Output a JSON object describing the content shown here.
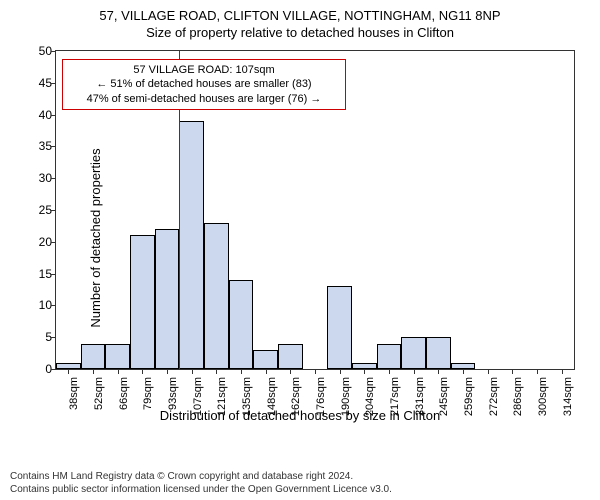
{
  "title_line1": "57, VILLAGE ROAD, CLIFTON VILLAGE, NOTTINGHAM, NG11 8NP",
  "title_line2": "Size of property relative to detached houses in Clifton",
  "ylabel": "Number of detached properties",
  "xlabel": "Distribution of detached houses by size in Clifton",
  "chart": {
    "type": "histogram",
    "ymin": 0,
    "ymax": 50,
    "ytick_step": 5,
    "yticks": [
      0,
      5,
      10,
      15,
      20,
      25,
      30,
      35,
      40,
      45,
      50
    ],
    "xtick_labels": [
      "38sqm",
      "52sqm",
      "66sqm",
      "79sqm",
      "93sqm",
      "107sqm",
      "121sqm",
      "135sqm",
      "148sqm",
      "162sqm",
      "176sqm",
      "190sqm",
      "204sqm",
      "217sqm",
      "231sqm",
      "245sqm",
      "259sqm",
      "272sqm",
      "286sqm",
      "300sqm",
      "314sqm"
    ],
    "bar_values": [
      1,
      4,
      4,
      21,
      22,
      39,
      23,
      14,
      3,
      4,
      0,
      13,
      1,
      4,
      5,
      5,
      1,
      0,
      0,
      0,
      0
    ],
    "bar_fill": "#cbd8ee",
    "bar_border": "#000000",
    "refline_x_index": 5,
    "refline_color": "#cc0000",
    "background": "#ffffff",
    "axis_color": "#333333"
  },
  "annotation": {
    "line1": "57 VILLAGE ROAD: 107sqm",
    "line2": "← 51% of detached houses are smaller (83)",
    "line3": "47% of semi-detached houses are larger (76) →",
    "border_color": "#cc0000"
  },
  "footer": {
    "line1": "Contains HM Land Registry data © Crown copyright and database right 2024.",
    "line2": "Contains public sector information licensed under the Open Government Licence v3.0."
  }
}
